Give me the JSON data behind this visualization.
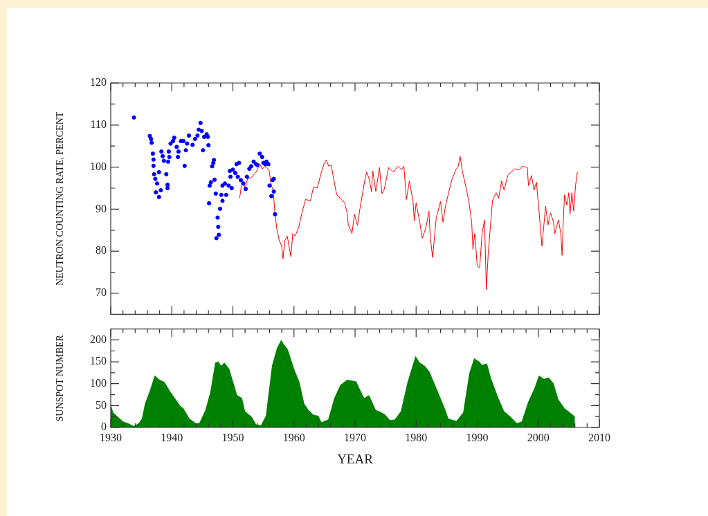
{
  "chart_data": [
    {
      "type": "scatter",
      "ylabel": "NEUTRON COUNTING RATE, PERCENT",
      "xlim": [
        1930,
        2010
      ],
      "ylim": [
        65,
        120
      ],
      "tick_labels": "y",
      "xticks": [
        1930,
        {
          "value": 1932,
          "label": null
        },
        {
          "value": 1934,
          "label": null
        },
        {
          "value": 1936,
          "label": null
        },
        {
          "value": 1938,
          "label": null
        },
        1940,
        {
          "value": 1942,
          "label": null
        },
        {
          "value": 1944,
          "label": null
        },
        {
          "value": 1946,
          "label": null
        },
        {
          "value": 1948,
          "label": null
        },
        1950,
        {
          "value": 1952,
          "label": null
        },
        {
          "value": 1954,
          "label": null
        },
        {
          "value": 1956,
          "label": null
        },
        {
          "value": 1958,
          "label": null
        },
        1960,
        {
          "value": 1962,
          "label": null
        },
        {
          "value": 1964,
          "label": null
        },
        {
          "value": 1966,
          "label": null
        },
        {
          "value": 1968,
          "label": null
        },
        1970,
        {
          "value": 1972,
          "label": null
        },
        {
          "value": 1974,
          "label": null
        },
        {
          "value": 1976,
          "label": null
        },
        {
          "value": 1978,
          "label": null
        },
        1980,
        {
          "value": 1982,
          "label": null
        },
        {
          "value": 1984,
          "label": null
        },
        {
          "value": 1986,
          "label": null
        },
        {
          "value": 1988,
          "label": null
        },
        1990,
        {
          "value": 1992,
          "label": null
        },
        {
          "value": 1994,
          "label": null
        },
        {
          "value": 1996,
          "label": null
        },
        {
          "value": 1998,
          "label": null
        },
        2000,
        {
          "value": 2002,
          "label": null
        },
        {
          "value": 2004,
          "label": null
        },
        {
          "value": 2006,
          "label": null
        },
        {
          "value": 2008,
          "label": null
        },
        2010
      ],
      "yticks": [
        70,
        {
          "value": 75,
          "label": null
        },
        80,
        {
          "value": 85,
          "label": null
        },
        90,
        {
          "value": 95,
          "label": null
        },
        100,
        {
          "value": 105,
          "label": null
        },
        110,
        {
          "value": 115,
          "label": null
        },
        120
      ],
      "series": [
        {
          "marker": "circle",
          "color": "#0000ff",
          "x": [
            1933.8,
            1936.4,
            1936.6,
            1936.7,
            1936.9,
            1937.0,
            1937.0,
            1937.1,
            1937.3,
            1937.4,
            1937.6,
            1937.9,
            1937.9,
            1938.2,
            1938.3,
            1938.5,
            1938.7,
            1939.1,
            1939.3,
            1939.3,
            1939.4,
            1939.5,
            1939.6,
            1939.8,
            1940.2,
            1940.4,
            1940.8,
            1941.0,
            1941.1,
            1941.5,
            1941.9,
            1942.1,
            1942.3,
            1942.5,
            1942.8,
            1943.4,
            1943.8,
            1944.2,
            1944.4,
            1944.7,
            1944.9,
            1945.1,
            1945.3,
            1945.7,
            1945.9,
            1946.0,
            1946.1,
            1946.2,
            1946.4,
            1946.6,
            1946.8,
            1946.9,
            1947.0,
            1947.2,
            1947.3,
            1947.5,
            1947.6,
            1947.7,
            1947.9,
            1948.1,
            1948.3,
            1948.3,
            1948.7,
            1948.9,
            1949.3,
            1949.5,
            1949.6,
            1949.8,
            1950.0,
            1950.4,
            1950.6,
            1950.8,
            1951.0,
            1951.3,
            1951.7,
            1952.1,
            1952.3,
            1952.7,
            1953.0,
            1953.4,
            1953.8,
            1954.0,
            1954.4,
            1954.8,
            1955.0,
            1955.3,
            1955.5,
            1955.8,
            1956.0,
            1956.3,
            1956.5,
            1956.7,
            1956.7,
            1956.9
          ],
          "values": [
            111.8,
            107.4,
            106.7,
            105.8,
            103.2,
            101.8,
            100.3,
            98.3,
            97.2,
            94.0,
            96.1,
            92.9,
            98.8,
            94.5,
            103.7,
            102.6,
            101.5,
            98.3,
            95.8,
            95.0,
            101.3,
            103.7,
            102.4,
            105.6,
            106.2,
            107.0,
            104.8,
            102.4,
            103.7,
            106.2,
            106.2,
            100.3,
            104.0,
            105.6,
            107.5,
            105.3,
            106.7,
            107.5,
            108.9,
            110.5,
            108.6,
            104.0,
            107.2,
            107.8,
            107.2,
            105.2,
            91.4,
            95.6,
            96.4,
            100.2,
            101.0,
            101.7,
            97.0,
            93.7,
            83.1,
            88.0,
            85.8,
            83.9,
            90.1,
            93.4,
            92.0,
            95.6,
            96.1,
            93.4,
            95.6,
            99.1,
            97.7,
            95.0,
            99.4,
            98.6,
            100.7,
            97.7,
            101.0,
            96.9,
            96.1,
            94.8,
            97.7,
            99.6,
            100.2,
            101.3,
            100.7,
            100.5,
            103.2,
            102.4,
            101.0,
            100.7,
            101.3,
            100.7,
            95.6,
            93.1,
            96.9,
            97.2,
            94.2,
            88.8
          ]
        },
        {
          "type": "line",
          "marker": "none",
          "color": "#ff0000",
          "x": [
            1951.1,
            1951.4,
            1951.7,
            1952.0,
            1952.4,
            1953.0,
            1953.8,
            1954.4,
            1954.8,
            1955.3,
            1955.9,
            1956.3,
            1956.6,
            1956.9,
            1957.2,
            1957.6,
            1958.0,
            1958.2,
            1958.5,
            1958.9,
            1959.5,
            1959.8,
            1960.2,
            1960.8,
            1961.3,
            1961.9,
            1962.7,
            1963.2,
            1963.8,
            1964.4,
            1964.9,
            1965.3,
            1965.7,
            1966.1,
            1966.5,
            1967.0,
            1967.8,
            1968.3,
            1968.7,
            1968.9,
            1969.5,
            1969.9,
            1970.4,
            1970.8,
            1971.6,
            1971.9,
            1972.3,
            1972.7,
            1972.9,
            1973.4,
            1974.0,
            1974.4,
            1974.8,
            1975.5,
            1976.3,
            1977.0,
            1977.6,
            1978.0,
            1978.4,
            1978.9,
            1979.5,
            1979.7,
            1980.0,
            1980.6,
            1981.0,
            1981.6,
            1982.1,
            1982.3,
            1982.7,
            1983.3,
            1984.0,
            1984.4,
            1984.8,
            1985.5,
            1985.9,
            1986.5,
            1986.9,
            1987.2,
            1987.6,
            1988.2,
            1988.7,
            1989.1,
            1989.3,
            1989.6,
            1990.0,
            1990.4,
            1990.8,
            1991.2,
            1991.5,
            1991.8,
            1992.1,
            1992.5,
            1993.1,
            1993.5,
            1994.0,
            1994.4,
            1995.0,
            1996.1,
            1996.9,
            1997.4,
            1998.2,
            1998.4,
            1998.9,
            1999.3,
            1999.7,
            2000.1,
            2000.6,
            2001.2,
            2001.6,
            2002.0,
            2002.5,
            2002.7,
            2003.3,
            2003.7,
            2003.9,
            2004.1,
            2004.3,
            2004.7,
            2005.0,
            2005.2,
            2005.5,
            2005.8,
            2006.1,
            2006.4
          ],
          "values": [
            92.6,
            95.6,
            96.7,
            95.0,
            97.2,
            97.5,
            98.8,
            100.7,
            99.6,
            100.2,
            99.4,
            95.6,
            94.5,
            88.8,
            85.3,
            82.5,
            81.2,
            78.2,
            82.5,
            83.6,
            78.7,
            84.2,
            83.6,
            85.8,
            89.1,
            92.3,
            92.0,
            95.3,
            95.0,
            98.3,
            100.7,
            101.7,
            100.2,
            100.5,
            97.2,
            93.4,
            92.3,
            91.5,
            89.1,
            86.3,
            84.2,
            88.8,
            86.1,
            90.1,
            96.9,
            98.8,
            97.2,
            94.2,
            99.1,
            94.2,
            99.9,
            93.7,
            94.8,
            99.9,
            98.8,
            100.2,
            99.4,
            100.2,
            92.3,
            96.7,
            91.8,
            87.2,
            91.5,
            86.9,
            83.1,
            85.5,
            89.6,
            83.6,
            78.5,
            88.0,
            91.8,
            86.9,
            90.7,
            95.0,
            97.2,
            99.4,
            100.2,
            102.6,
            98.8,
            95.0,
            91.2,
            86.9,
            80.4,
            84.2,
            76.6,
            76.0,
            84.2,
            87.4,
            70.9,
            79.3,
            84.7,
            92.0,
            93.9,
            92.6,
            96.7,
            94.5,
            98.0,
            99.6,
            99.4,
            100.2,
            99.9,
            95.6,
            98.0,
            94.5,
            96.4,
            89.9,
            81.2,
            90.7,
            86.3,
            89.1,
            86.9,
            84.2,
            87.4,
            84.2,
            79.0,
            87.4,
            93.4,
            90.9,
            93.9,
            88.8,
            93.9,
            89.6,
            95.6,
            98.8
          ]
        }
      ]
    },
    {
      "type": "area",
      "ylabel": "SUNSPOT NUMBER",
      "xlabel": "YEAR",
      "xlim": [
        1930,
        2010
      ],
      "ylim": [
        0,
        225
      ],
      "xticks": [
        1930,
        {
          "value": 1932,
          "label": null
        },
        {
          "value": 1934,
          "label": null
        },
        {
          "value": 1936,
          "label": null
        },
        {
          "value": 1938,
          "label": null
        },
        1940,
        {
          "value": 1942,
          "label": null
        },
        {
          "value": 1944,
          "label": null
        },
        {
          "value": 1946,
          "label": null
        },
        {
          "value": 1948,
          "label": null
        },
        1950,
        {
          "value": 1952,
          "label": null
        },
        {
          "value": 1954,
          "label": null
        },
        {
          "value": 1956,
          "label": null
        },
        {
          "value": 1958,
          "label": null
        },
        1960,
        {
          "value": 1962,
          "label": null
        },
        {
          "value": 1964,
          "label": null
        },
        {
          "value": 1966,
          "label": null
        },
        {
          "value": 1968,
          "label": null
        },
        1970,
        {
          "value": 1972,
          "label": null
        },
        {
          "value": 1974,
          "label": null
        },
        {
          "value": 1976,
          "label": null
        },
        {
          "value": 1978,
          "label": null
        },
        1980,
        {
          "value": 1982,
          "label": null
        },
        {
          "value": 1984,
          "label": null
        },
        {
          "value": 1986,
          "label": null
        },
        {
          "value": 1988,
          "label": null
        },
        1990,
        {
          "value": 1992,
          "label": null
        },
        {
          "value": 1994,
          "label": null
        },
        {
          "value": 1996,
          "label": null
        },
        {
          "value": 1998,
          "label": null
        },
        2000,
        {
          "value": 2002,
          "label": null
        },
        {
          "value": 2004,
          "label": null
        },
        {
          "value": 2006,
          "label": null
        },
        {
          "value": 2008,
          "label": null
        },
        2010
      ],
      "yticks": [
        0,
        {
          "value": 25,
          "label": null
        },
        50,
        {
          "value": 75,
          "label": null
        },
        100,
        {
          "value": 125,
          "label": null
        },
        150,
        {
          "value": 175,
          "label": null
        },
        200
      ],
      "series": [
        {
          "color": "#008000",
          "x": [
            1930.0,
            1930.4,
            1931.2,
            1932.0,
            1932.8,
            1933.8,
            1934.6,
            1935.1,
            1935.6,
            1936.4,
            1937.2,
            1938.0,
            1938.8,
            1939.8,
            1940.6,
            1941.4,
            1941.9,
            1942.9,
            1944.0,
            1944.5,
            1945.5,
            1946.3,
            1947.1,
            1947.6,
            1948.1,
            1948.6,
            1949.4,
            1949.9,
            1950.7,
            1951.5,
            1952.0,
            1953.1,
            1953.8,
            1954.6,
            1955.4,
            1956.4,
            1957.2,
            1957.9,
            1958.3,
            1959.0,
            1960.1,
            1960.9,
            1961.7,
            1962.4,
            1963.2,
            1964.0,
            1964.5,
            1965.6,
            1966.6,
            1967.6,
            1968.7,
            1969.5,
            1970.2,
            1970.8,
            1971.5,
            1972.3,
            1973.4,
            1974.1,
            1974.9,
            1975.7,
            1976.5,
            1977.5,
            1978.6,
            1979.9,
            1980.6,
            1981.4,
            1982.2,
            1983.2,
            1984.0,
            1984.8,
            1985.3,
            1986.6,
            1987.7,
            1988.7,
            1989.5,
            1990.3,
            1990.8,
            1991.6,
            1992.3,
            1993.4,
            1994.4,
            1995.5,
            1996.5,
            1997.3,
            1998.3,
            1999.4,
            2000.1,
            2000.9,
            2001.7,
            2002.5,
            2003.3,
            2004.3,
            2005.4,
            2006.0
          ],
          "values": [
            54,
            34,
            24,
            14,
            10,
            3,
            10,
            20,
            54,
            84,
            119,
            109,
            104,
            81,
            65,
            49,
            44,
            20,
            9,
            10,
            40,
            81,
            148,
            151,
            141,
            148,
            134,
            111,
            74,
            67,
            37,
            24,
            7,
            5,
            27,
            141,
            181,
            200,
            191,
            178,
            131,
            104,
            54,
            40,
            29,
            27,
            12,
            18,
            67,
            97,
            109,
            107,
            105,
            87,
            67,
            74,
            40,
            36,
            30,
            17,
            18,
            37,
            104,
            163,
            148,
            141,
            127,
            94,
            67,
            40,
            20,
            15,
            34,
            124,
            158,
            151,
            143,
            146,
            111,
            70,
            37,
            24,
            10,
            14,
            57,
            91,
            119,
            111,
            114,
            101,
            64,
            44,
            32,
            25
          ]
        }
      ]
    }
  ]
}
